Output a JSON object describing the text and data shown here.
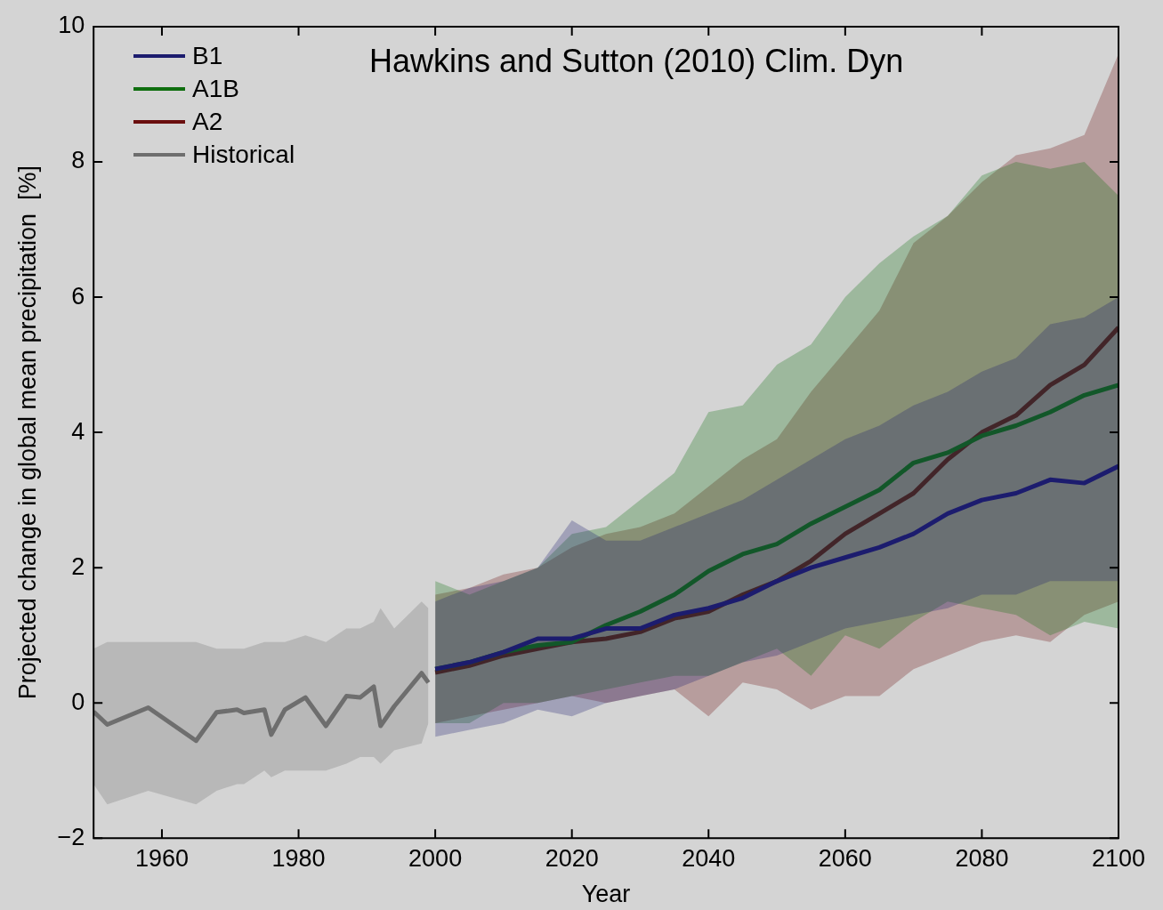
{
  "chart_data": {
    "type": "line",
    "xlabel": "Year",
    "ylabel": "Projected change in global mean precipitation  [%]",
    "annotations": [
      "Hawkins and Sutton (2010) Clim. Dyn"
    ],
    "xlim": [
      1950,
      2100
    ],
    "xticks": [
      1960,
      1980,
      2000,
      2020,
      2040,
      2060,
      2080,
      2100
    ],
    "ylim": [
      -2,
      10
    ],
    "yticks": [
      -2,
      0,
      2,
      4,
      6,
      8,
      10
    ],
    "grid": false,
    "legend": "top left",
    "marker": "none",
    "line_style": "solid",
    "series": [
      {
        "name": "B1",
        "color": "#1c1c6e",
        "x": [
          2000,
          2005,
          2010,
          2015,
          2020,
          2025,
          2030,
          2035,
          2040,
          2045,
          2050,
          2055,
          2060,
          2065,
          2070,
          2075,
          2080,
          2085,
          2090,
          2095,
          2100
        ],
        "values": [
          0.5,
          0.6,
          0.75,
          0.95,
          0.95,
          1.1,
          1.1,
          1.3,
          1.4,
          1.55,
          1.8,
          2.0,
          2.15,
          2.3,
          2.5,
          2.8,
          3.0,
          3.1,
          3.3,
          3.25,
          3.5
        ],
        "lower": [
          -0.5,
          -0.4,
          -0.3,
          -0.1,
          -0.2,
          0.0,
          0.1,
          0.2,
          0.4,
          0.6,
          0.7,
          0.9,
          1.1,
          1.2,
          1.3,
          1.4,
          1.6,
          1.6,
          1.8,
          1.8,
          1.8
        ],
        "upper": [
          1.5,
          1.7,
          1.8,
          2.0,
          2.7,
          2.4,
          2.4,
          2.6,
          2.8,
          3.0,
          3.3,
          3.6,
          3.9,
          4.1,
          4.4,
          4.6,
          4.9,
          5.1,
          5.6,
          5.7,
          6.0
        ]
      },
      {
        "name": "A1B",
        "color": "#0f6e0f",
        "x": [
          2000,
          2005,
          2010,
          2015,
          2020,
          2025,
          2030,
          2035,
          2040,
          2045,
          2050,
          2055,
          2060,
          2065,
          2070,
          2075,
          2080,
          2085,
          2090,
          2095,
          2100
        ],
        "values": [
          0.5,
          0.6,
          0.75,
          0.85,
          0.9,
          1.15,
          1.35,
          1.6,
          1.95,
          2.2,
          2.35,
          2.65,
          2.9,
          3.15,
          3.55,
          3.7,
          3.95,
          4.1,
          4.3,
          4.55,
          4.7
        ],
        "lower": [
          -0.3,
          -0.3,
          0.0,
          0.0,
          0.1,
          0.2,
          0.3,
          0.4,
          0.4,
          0.6,
          0.8,
          0.4,
          1.0,
          0.8,
          1.2,
          1.5,
          1.4,
          1.3,
          1.0,
          1.2,
          1.1
        ],
        "upper": [
          1.8,
          1.6,
          1.8,
          2.0,
          2.5,
          2.6,
          3.0,
          3.4,
          4.3,
          4.4,
          5.0,
          5.3,
          6.0,
          6.5,
          6.9,
          7.2,
          7.8,
          8.0,
          7.9,
          8.0,
          7.5
        ]
      },
      {
        "name": "A2",
        "color": "#6b0f0f",
        "x": [
          2000,
          2005,
          2010,
          2015,
          2020,
          2025,
          2030,
          2035,
          2040,
          2045,
          2050,
          2055,
          2060,
          2065,
          2070,
          2075,
          2080,
          2085,
          2090,
          2095,
          2100
        ],
        "values": [
          0.45,
          0.55,
          0.7,
          0.8,
          0.9,
          0.95,
          1.05,
          1.25,
          1.35,
          1.6,
          1.8,
          2.1,
          2.5,
          2.8,
          3.1,
          3.6,
          4.0,
          4.25,
          4.7,
          5.0,
          5.55
        ],
        "lower": [
          -0.3,
          -0.2,
          -0.1,
          0.0,
          0.1,
          0.0,
          0.1,
          0.2,
          -0.2,
          0.3,
          0.2,
          -0.1,
          0.1,
          0.1,
          0.5,
          0.7,
          0.9,
          1.0,
          0.9,
          1.3,
          1.5
        ],
        "upper": [
          1.6,
          1.7,
          1.9,
          2.0,
          2.3,
          2.5,
          2.6,
          2.8,
          3.2,
          3.6,
          3.9,
          4.6,
          5.2,
          5.8,
          6.8,
          7.2,
          7.7,
          8.1,
          8.2,
          8.4,
          9.6
        ]
      },
      {
        "name": "Historical",
        "color": "#6e6e6e",
        "x": [
          1950,
          1952,
          1958,
          1965,
          1968,
          1971,
          1972,
          1975,
          1976,
          1978,
          1981,
          1984,
          1987,
          1989,
          1991,
          1992,
          1994,
          1998,
          1999
        ],
        "values": [
          -0.13,
          -0.32,
          -0.07,
          -0.56,
          -0.14,
          -0.1,
          -0.15,
          -0.1,
          -0.47,
          -0.1,
          0.08,
          -0.34,
          0.1,
          0.08,
          0.24,
          -0.34,
          -0.05,
          0.44,
          0.3
        ],
        "lower": [
          -1.2,
          -1.5,
          -1.3,
          -1.5,
          -1.3,
          -1.2,
          -1.2,
          -1.0,
          -1.1,
          -1.0,
          -1.0,
          -1.0,
          -0.9,
          -0.8,
          -0.8,
          -0.9,
          -0.7,
          -0.6,
          -0.3
        ],
        "upper": [
          0.8,
          0.9,
          0.9,
          0.9,
          0.8,
          0.8,
          0.8,
          0.9,
          0.9,
          0.9,
          1.0,
          0.9,
          1.1,
          1.1,
          1.2,
          1.4,
          1.1,
          1.5,
          1.4
        ]
      }
    ]
  }
}
